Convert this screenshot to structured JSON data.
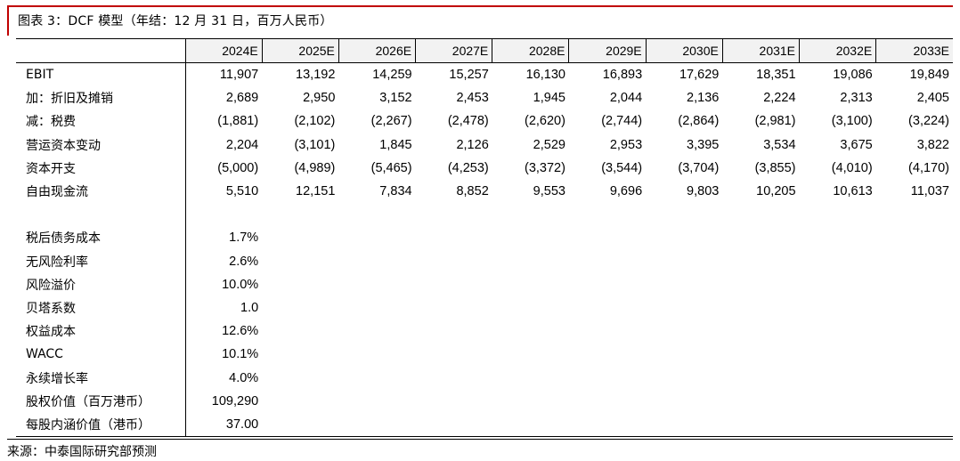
{
  "title": "图表 3：DCF 模型（年结：12 月 31 日，百万人民币）",
  "years": [
    "2024E",
    "2025E",
    "2026E",
    "2027E",
    "2028E",
    "2029E",
    "2030E",
    "2031E",
    "2032E",
    "2033E"
  ],
  "cashflow_rows": [
    {
      "label": "EBIT",
      "values": [
        "11,907",
        "13,192",
        "14,259",
        "15,257",
        "16,130",
        "16,893",
        "17,629",
        "18,351",
        "19,086",
        "19,849"
      ]
    },
    {
      "label": "加：折旧及摊销",
      "values": [
        "2,689",
        "2,950",
        "3,152",
        "2,453",
        "1,945",
        "2,044",
        "2,136",
        "2,224",
        "2,313",
        "2,405"
      ]
    },
    {
      "label": "减：税费",
      "values": [
        "(1,881)",
        "(2,102)",
        "(2,267)",
        "(2,478)",
        "(2,620)",
        "(2,744)",
        "(2,864)",
        "(2,981)",
        "(3,100)",
        "(3,224)"
      ]
    },
    {
      "label": "营运资本变动",
      "values": [
        "2,204",
        "(3,101)",
        "1,845",
        "2,126",
        "2,529",
        "2,953",
        "3,395",
        "3,534",
        "3,675",
        "3,822"
      ]
    },
    {
      "label": "资本开支",
      "values": [
        "(5,000)",
        "(4,989)",
        "(5,465)",
        "(4,253)",
        "(3,372)",
        "(3,544)",
        "(3,704)",
        "(3,855)",
        "(4,010)",
        "(4,170)"
      ]
    },
    {
      "label": "自由现金流",
      "values": [
        "5,510",
        "12,151",
        "7,834",
        "8,852",
        "9,553",
        "9,696",
        "9,803",
        "10,205",
        "10,613",
        "11,037"
      ]
    }
  ],
  "assumptions": [
    {
      "label": "税后债务成本",
      "value": "1.7%"
    },
    {
      "label": "无风险利率",
      "value": "2.6%"
    },
    {
      "label": "风险溢价",
      "value": "10.0%"
    },
    {
      "label": "贝塔系数",
      "value": "1.0"
    },
    {
      "label": "权益成本",
      "value": "12.6%"
    },
    {
      "label": "WACC",
      "value": "10.1%"
    },
    {
      "label": "永续增长率",
      "value": "4.0%"
    },
    {
      "label": "股权价值（百万港币）",
      "value": "109,290"
    },
    {
      "label": "每股内涵价值（港币）",
      "value": "37.00"
    }
  ],
  "source": "来源：中泰国际研究部预测",
  "colors": {
    "accent": "#c00000",
    "header_bg": "#f2f2f2"
  }
}
